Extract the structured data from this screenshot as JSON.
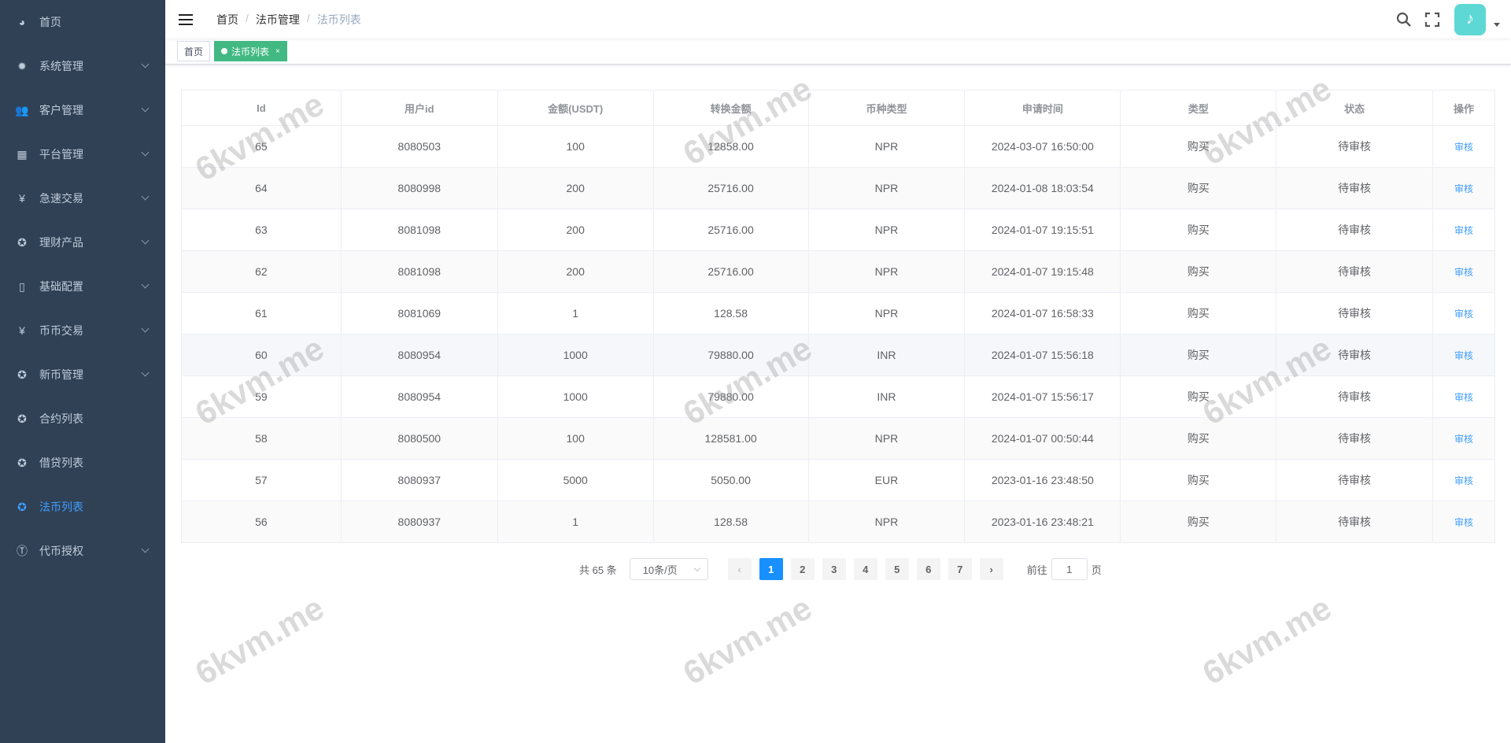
{
  "sidebar": {
    "items": [
      {
        "label": "首页",
        "icon": "dashboard-icon",
        "glyph": "◕",
        "expandable": false
      },
      {
        "label": "系统管理",
        "icon": "gear-icon",
        "glyph": "✹",
        "expandable": true
      },
      {
        "label": "客户管理",
        "icon": "users-icon",
        "glyph": "👥",
        "expandable": true
      },
      {
        "label": "平台管理",
        "icon": "grid-icon",
        "glyph": "▦",
        "expandable": true
      },
      {
        "label": "急速交易",
        "icon": "yen-icon",
        "glyph": "¥",
        "expandable": true
      },
      {
        "label": "理财产品",
        "icon": "circle-icon",
        "glyph": "✪",
        "expandable": true
      },
      {
        "label": "基础配置",
        "icon": "book-icon",
        "glyph": "▯",
        "expandable": true
      },
      {
        "label": "币币交易",
        "icon": "yen-icon",
        "glyph": "¥",
        "expandable": true
      },
      {
        "label": "新币管理",
        "icon": "circle-icon",
        "glyph": "✪",
        "expandable": true
      },
      {
        "label": "合约列表",
        "icon": "circle-icon",
        "glyph": "✪",
        "expandable": false
      },
      {
        "label": "借贷列表",
        "icon": "circle-icon",
        "glyph": "✪",
        "expandable": false
      },
      {
        "label": "法币列表",
        "icon": "circle-icon",
        "glyph": "✪",
        "expandable": false,
        "active": true
      },
      {
        "label": "代币授权",
        "icon": "token-icon",
        "glyph": "Ⓣ",
        "expandable": true
      }
    ]
  },
  "breadcrumb": [
    "首页",
    "法币管理",
    "法币列表"
  ],
  "tags": [
    {
      "label": "首页",
      "active": false
    },
    {
      "label": "法币列表",
      "active": true,
      "close": "×"
    }
  ],
  "table": {
    "columns": [
      "Id",
      "用户id",
      "金额(USDT)",
      "转换金额",
      "币种类型",
      "申请时间",
      "类型",
      "状态",
      "操作"
    ],
    "rows": [
      [
        "65",
        "8080503",
        "100",
        "12858.00",
        "NPR",
        "2024-03-07 16:50:00",
        "购买",
        "待审核",
        "审核"
      ],
      [
        "64",
        "8080998",
        "200",
        "25716.00",
        "NPR",
        "2024-01-08 18:03:54",
        "购买",
        "待审核",
        "审核"
      ],
      [
        "63",
        "8081098",
        "200",
        "25716.00",
        "NPR",
        "2024-01-07 19:15:51",
        "购买",
        "待审核",
        "审核"
      ],
      [
        "62",
        "8081098",
        "200",
        "25716.00",
        "NPR",
        "2024-01-07 19:15:48",
        "购买",
        "待审核",
        "审核"
      ],
      [
        "61",
        "8081069",
        "1",
        "128.58",
        "NPR",
        "2024-01-07 16:58:33",
        "购买",
        "待审核",
        "审核"
      ],
      [
        "60",
        "8080954",
        "1000",
        "79880.00",
        "INR",
        "2024-01-07 15:56:18",
        "购买",
        "待审核",
        "审核"
      ],
      [
        "59",
        "8080954",
        "1000",
        "79880.00",
        "INR",
        "2024-01-07 15:56:17",
        "购买",
        "待审核",
        "审核"
      ],
      [
        "58",
        "8080500",
        "100",
        "128581.00",
        "NPR",
        "2024-01-07 00:50:44",
        "购买",
        "待审核",
        "审核"
      ],
      [
        "57",
        "8080937",
        "5000",
        "5050.00",
        "EUR",
        "2023-01-16 23:48:50",
        "购买",
        "待审核",
        "审核"
      ],
      [
        "56",
        "8080937",
        "1",
        "128.58",
        "NPR",
        "2023-01-16 23:48:21",
        "购买",
        "待审核",
        "审核"
      ]
    ]
  },
  "pagination": {
    "total": "共 65 条",
    "page_size": "10条/页",
    "pages": [
      "1",
      "2",
      "3",
      "4",
      "5",
      "6",
      "7"
    ],
    "current": "1",
    "goto_label": "前往",
    "goto_value": "1",
    "goto_suffix": "页"
  },
  "watermark": "6kvm.me",
  "colors": {
    "sidebar": "#304156",
    "active": "#409eff",
    "tag_active": "#42b983",
    "page_active": "#1890ff"
  }
}
